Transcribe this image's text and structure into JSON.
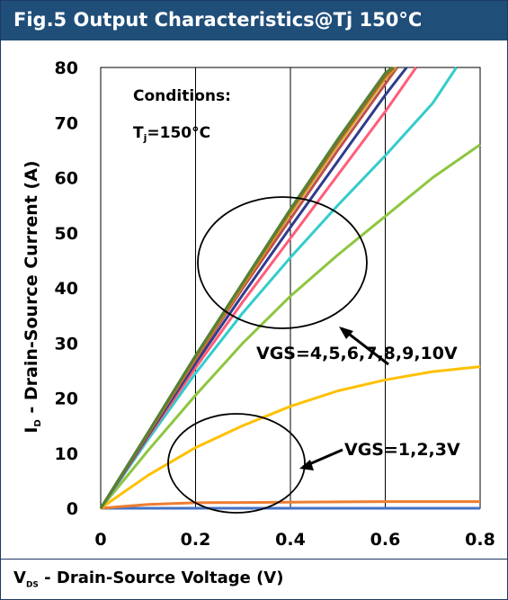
{
  "header": {
    "title": "Fig.5 Output Characteristics@Tj 150°C"
  },
  "footer": {
    "xlabel_main": "V",
    "xlabel_sub": "DS",
    "xlabel_rest": " - Drain-Source Voltage (V)"
  },
  "colors": {
    "header_bg": "#1f4e79"
  },
  "chart_data": {
    "type": "line",
    "title": "Fig.5 Output Characteristics@Tj 150°C",
    "xlabel": "VDS - Drain-Source Voltage (V)",
    "ylabel": "ID - Drain-Source Current (A)",
    "xlim": [
      0,
      0.8
    ],
    "ylim": [
      0,
      80
    ],
    "xticks": [
      0,
      0.2,
      0.4,
      0.6,
      0.8
    ],
    "xtick_labels": [
      "0",
      "0.2",
      "0.4",
      "0.6",
      "0.8"
    ],
    "yticks": [
      0,
      10,
      20,
      30,
      40,
      50,
      60,
      70,
      80
    ],
    "ytick_labels": [
      "0",
      "10",
      "20",
      "30",
      "40",
      "50",
      "60",
      "70",
      "80"
    ],
    "grid": "vertical",
    "conditions": {
      "line1": "Conditions:",
      "line2_main": "T",
      "line2_sub": "j",
      "line2_rest": "=150°C"
    },
    "annotations": [
      {
        "text": "VGS=4,5,6,7,8,9,10V"
      },
      {
        "text": "VGS=1,2,3V"
      }
    ],
    "series": [
      {
        "color": "#4472c4",
        "x": [
          0,
          0.8
        ],
        "y": [
          0,
          0
        ]
      },
      {
        "color": "#ed7d31",
        "x": [
          0,
          0.1,
          0.2,
          0.4,
          0.6,
          0.8
        ],
        "y": [
          0,
          0.7,
          1.0,
          1.1,
          1.2,
          1.2
        ]
      },
      {
        "color": "#ffc000",
        "x": [
          0,
          0.1,
          0.2,
          0.3,
          0.4,
          0.5,
          0.6,
          0.7,
          0.8
        ],
        "y": [
          0,
          6.0,
          11.0,
          15.0,
          18.5,
          21.3,
          23.3,
          24.8,
          25.7
        ]
      },
      {
        "color": "#8dc63f",
        "x": [
          0,
          0.1,
          0.2,
          0.3,
          0.4,
          0.5,
          0.6,
          0.7,
          0.8
        ],
        "y": [
          0,
          10.5,
          20.5,
          30.0,
          38.5,
          46.0,
          53.0,
          60.0,
          66.0
        ]
      },
      {
        "color": "#33cccc",
        "x": [
          0,
          0.1,
          0.2,
          0.3,
          0.4,
          0.5,
          0.6,
          0.7,
          0.75
        ],
        "y": [
          0,
          12.5,
          24.5,
          35.5,
          45.5,
          55.0,
          64.0,
          73.5,
          80.0
        ]
      },
      {
        "color": "#ff5d7a",
        "x": [
          0,
          0.1,
          0.2,
          0.3,
          0.4,
          0.5,
          0.6,
          0.665
        ],
        "y": [
          0,
          13.0,
          25.5,
          37.5,
          49.0,
          60.5,
          72.0,
          80.0
        ]
      },
      {
        "color": "#2f3c8c",
        "x": [
          0,
          0.1,
          0.2,
          0.3,
          0.4,
          0.5,
          0.6,
          0.645
        ],
        "y": [
          0,
          13.2,
          26.3,
          38.8,
          51.0,
          63.0,
          75.0,
          80.0
        ]
      },
      {
        "color": "#c0504d",
        "x": [
          0,
          0.1,
          0.2,
          0.3,
          0.4,
          0.5,
          0.6,
          0.625
        ],
        "y": [
          0,
          13.5,
          27.0,
          40.0,
          52.5,
          65.0,
          77.0,
          80.0
        ]
      },
      {
        "color": "#d4a017",
        "x": [
          0,
          0.1,
          0.2,
          0.3,
          0.4,
          0.5,
          0.6,
          0.622
        ],
        "y": [
          0,
          13.6,
          27.3,
          40.5,
          53.5,
          66.0,
          78.0,
          80.0
        ]
      },
      {
        "color": "#996633",
        "x": [
          0,
          0.1,
          0.2,
          0.3,
          0.4,
          0.5,
          0.6,
          0.618
        ],
        "y": [
          0,
          13.7,
          27.5,
          40.8,
          54.0,
          66.5,
          78.5,
          80.0
        ]
      },
      {
        "color": "#548235",
        "x": [
          0,
          0.1,
          0.2,
          0.3,
          0.4,
          0.5,
          0.6,
          0.615
        ],
        "y": [
          0,
          13.8,
          27.7,
          41.0,
          54.3,
          67.0,
          79.0,
          80.0
        ]
      }
    ]
  }
}
